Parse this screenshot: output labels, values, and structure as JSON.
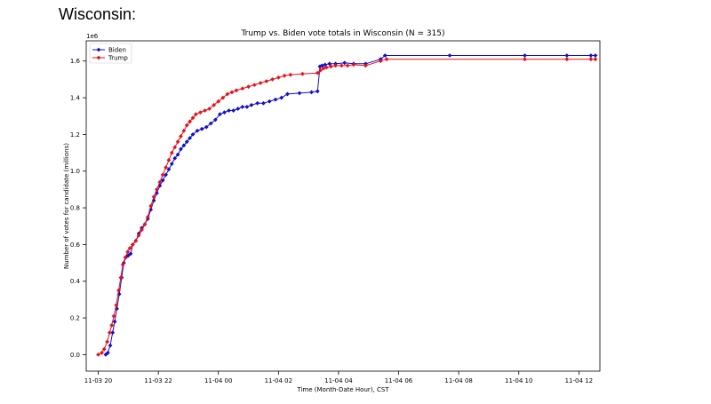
{
  "page": {
    "heading": "Wisconsin:"
  },
  "chart_data": {
    "type": "line",
    "title": "Trump vs. Biden vote totals in Wisconsin (N = 315)",
    "xlabel": "Time (Month-Date Hour), CST",
    "ylabel": "Number of votes for candidate (millions)",
    "y_scale_label": "1e6",
    "x_unit": "hours",
    "xlim": [
      -0.4,
      16.7
    ],
    "ylim": [
      -0.09,
      1.71
    ],
    "x_ticks": [
      {
        "x": 0,
        "label": "11-03 20"
      },
      {
        "x": 2,
        "label": "11-03 22"
      },
      {
        "x": 4,
        "label": "11-04 00"
      },
      {
        "x": 6,
        "label": "11-04 02"
      },
      {
        "x": 8,
        "label": "11-04 04"
      },
      {
        "x": 10,
        "label": "11-04 06"
      },
      {
        "x": 12,
        "label": "11-04 08"
      },
      {
        "x": 14,
        "label": "11-04 10"
      },
      {
        "x": 16,
        "label": "11-04 12"
      }
    ],
    "y_ticks": [
      {
        "y": 0.0,
        "label": "0.0"
      },
      {
        "y": 0.2,
        "label": "0.2"
      },
      {
        "y": 0.4,
        "label": "0.4"
      },
      {
        "y": 0.6,
        "label": "0.6"
      },
      {
        "y": 0.8,
        "label": "0.8"
      },
      {
        "y": 1.0,
        "label": "1.0"
      },
      {
        "y": 1.2,
        "label": "1.2"
      },
      {
        "y": 1.4,
        "label": "1.4"
      },
      {
        "y": 1.6,
        "label": "1.6"
      }
    ],
    "grid": false,
    "legend_position": "top-left",
    "series": [
      {
        "name": "Biden",
        "color": "#1010c8",
        "marker": "diamond",
        "points": [
          [
            0.25,
            0.0
          ],
          [
            0.32,
            0.01
          ],
          [
            0.4,
            0.05
          ],
          [
            0.48,
            0.12
          ],
          [
            0.55,
            0.18
          ],
          [
            0.62,
            0.25
          ],
          [
            0.7,
            0.33
          ],
          [
            0.78,
            0.42
          ],
          [
            0.85,
            0.5
          ],
          [
            0.92,
            0.53
          ],
          [
            1.0,
            0.54
          ],
          [
            1.08,
            0.55
          ],
          [
            1.15,
            0.6
          ],
          [
            1.25,
            0.62
          ],
          [
            1.35,
            0.66
          ],
          [
            1.45,
            0.69
          ],
          [
            1.55,
            0.71
          ],
          [
            1.65,
            0.74
          ],
          [
            1.75,
            0.79
          ],
          [
            1.85,
            0.84
          ],
          [
            1.95,
            0.88
          ],
          [
            2.05,
            0.92
          ],
          [
            2.15,
            0.95
          ],
          [
            2.25,
            0.98
          ],
          [
            2.35,
            1.01
          ],
          [
            2.45,
            1.04
          ],
          [
            2.55,
            1.07
          ],
          [
            2.65,
            1.09
          ],
          [
            2.75,
            1.12
          ],
          [
            2.85,
            1.14
          ],
          [
            2.95,
            1.16
          ],
          [
            3.05,
            1.18
          ],
          [
            3.15,
            1.2
          ],
          [
            3.3,
            1.22
          ],
          [
            3.45,
            1.23
          ],
          [
            3.6,
            1.24
          ],
          [
            3.75,
            1.26
          ],
          [
            3.9,
            1.28
          ],
          [
            4.05,
            1.31
          ],
          [
            4.2,
            1.32
          ],
          [
            4.35,
            1.33
          ],
          [
            4.5,
            1.33
          ],
          [
            4.65,
            1.34
          ],
          [
            4.8,
            1.35
          ],
          [
            4.95,
            1.35
          ],
          [
            5.1,
            1.36
          ],
          [
            5.3,
            1.37
          ],
          [
            5.5,
            1.37
          ],
          [
            5.7,
            1.38
          ],
          [
            5.9,
            1.39
          ],
          [
            6.1,
            1.4
          ],
          [
            6.3,
            1.42
          ],
          [
            6.7,
            1.425
          ],
          [
            7.1,
            1.43
          ],
          [
            7.3,
            1.435
          ],
          [
            7.38,
            1.57
          ],
          [
            7.45,
            1.575
          ],
          [
            7.55,
            1.58
          ],
          [
            7.7,
            1.585
          ],
          [
            7.9,
            1.585
          ],
          [
            8.2,
            1.59
          ],
          [
            8.5,
            1.585
          ],
          [
            8.9,
            1.585
          ],
          [
            9.4,
            1.61
          ],
          [
            9.55,
            1.63
          ],
          [
            11.7,
            1.63
          ],
          [
            14.2,
            1.63
          ],
          [
            15.6,
            1.63
          ],
          [
            16.4,
            1.63
          ],
          [
            16.55,
            1.63
          ]
        ]
      },
      {
        "name": "Trump",
        "color": "#e8101a",
        "marker": "diamond",
        "points": [
          [
            0.0,
            0.0
          ],
          [
            0.12,
            0.01
          ],
          [
            0.2,
            0.03
          ],
          [
            0.3,
            0.07
          ],
          [
            0.38,
            0.12
          ],
          [
            0.45,
            0.16
          ],
          [
            0.52,
            0.21
          ],
          [
            0.6,
            0.27
          ],
          [
            0.68,
            0.35
          ],
          [
            0.75,
            0.42
          ],
          [
            0.82,
            0.49
          ],
          [
            0.9,
            0.53
          ],
          [
            0.98,
            0.56
          ],
          [
            1.05,
            0.58
          ],
          [
            1.15,
            0.6
          ],
          [
            1.25,
            0.62
          ],
          [
            1.35,
            0.65
          ],
          [
            1.45,
            0.68
          ],
          [
            1.55,
            0.71
          ],
          [
            1.65,
            0.75
          ],
          [
            1.75,
            0.81
          ],
          [
            1.85,
            0.86
          ],
          [
            1.95,
            0.9
          ],
          [
            2.05,
            0.94
          ],
          [
            2.15,
            0.98
          ],
          [
            2.25,
            1.02
          ],
          [
            2.35,
            1.06
          ],
          [
            2.45,
            1.1
          ],
          [
            2.55,
            1.13
          ],
          [
            2.65,
            1.16
          ],
          [
            2.75,
            1.19
          ],
          [
            2.85,
            1.22
          ],
          [
            2.95,
            1.25
          ],
          [
            3.05,
            1.27
          ],
          [
            3.15,
            1.29
          ],
          [
            3.25,
            1.31
          ],
          [
            3.4,
            1.32
          ],
          [
            3.55,
            1.33
          ],
          [
            3.7,
            1.34
          ],
          [
            3.85,
            1.36
          ],
          [
            4.0,
            1.38
          ],
          [
            4.15,
            1.4
          ],
          [
            4.3,
            1.42
          ],
          [
            4.45,
            1.43
          ],
          [
            4.6,
            1.44
          ],
          [
            4.8,
            1.45
          ],
          [
            5.0,
            1.46
          ],
          [
            5.2,
            1.47
          ],
          [
            5.4,
            1.48
          ],
          [
            5.6,
            1.49
          ],
          [
            5.8,
            1.5
          ],
          [
            6.0,
            1.51
          ],
          [
            6.2,
            1.52
          ],
          [
            6.4,
            1.525
          ],
          [
            6.8,
            1.53
          ],
          [
            7.3,
            1.535
          ],
          [
            7.4,
            1.55
          ],
          [
            7.5,
            1.56
          ],
          [
            7.6,
            1.565
          ],
          [
            7.75,
            1.57
          ],
          [
            7.9,
            1.575
          ],
          [
            8.1,
            1.575
          ],
          [
            8.3,
            1.575
          ],
          [
            8.5,
            1.58
          ],
          [
            8.9,
            1.575
          ],
          [
            9.4,
            1.6
          ],
          [
            9.6,
            1.61
          ],
          [
            14.2,
            1.61
          ],
          [
            15.6,
            1.61
          ],
          [
            16.4,
            1.61
          ],
          [
            16.55,
            1.61
          ]
        ]
      }
    ]
  }
}
